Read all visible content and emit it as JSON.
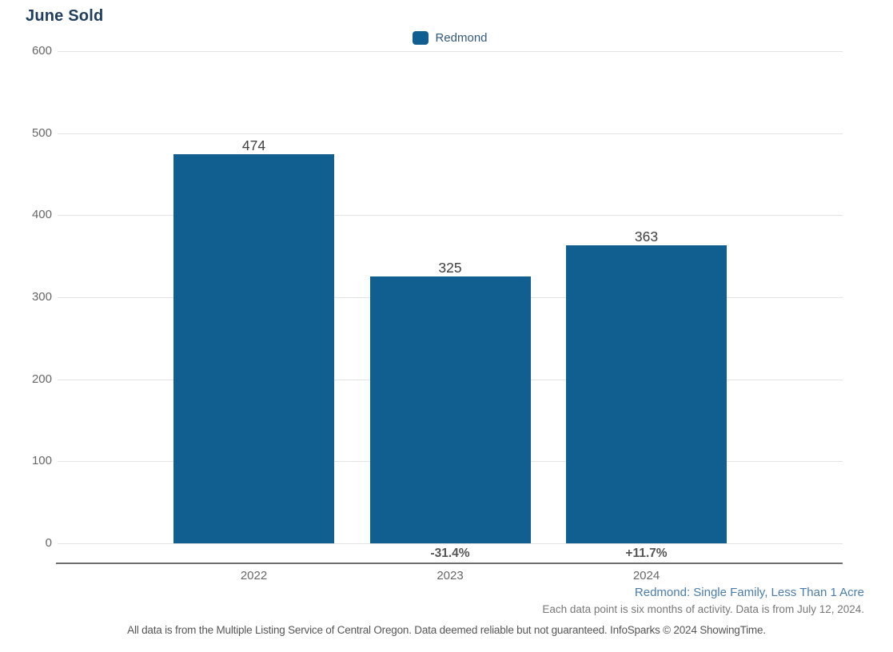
{
  "title": "June Sold",
  "legend": {
    "items": [
      {
        "label": "Redmond",
        "color": "#115e91"
      }
    ]
  },
  "chart_data": {
    "type": "bar",
    "title": "June Sold",
    "categories": [
      "2022",
      "2023",
      "2024"
    ],
    "series": [
      {
        "name": "Redmond",
        "color": "#115e91",
        "values": [
          474,
          325,
          363
        ]
      }
    ],
    "bar_value_labels": [
      "474",
      "325",
      "363"
    ],
    "percent_change_labels": [
      "",
      "-31.4%",
      "+11.7%"
    ],
    "xlabel": "",
    "ylabel": "",
    "ylim": [
      0,
      600
    ],
    "yticks": [
      0,
      100,
      200,
      300,
      400,
      500,
      600
    ],
    "grid": "horizontal",
    "legend_position": "top-center"
  },
  "footer": {
    "series_description": "Redmond: Single Family, Less Than 1 Acre",
    "activity_note": "Each data point is six months of activity. Data is from July 12, 2024.",
    "disclaimer": "All data is from the Multiple Listing Service of Central Oregon. Data deemed reliable but not guaranteed. InfoSparks © 2024 ShowingTime."
  },
  "colors": {
    "bar": "#115e91",
    "title_text": "#1f3d5c",
    "legend_text": "#33597a",
    "axis_text": "#666666",
    "value_label_text": "#404040",
    "percent_label_text": "#555555",
    "gridline": "#e3e3e3",
    "axis_line": "#6e6e6e",
    "series_description_text": "#4a7cab",
    "note_text": "#777777",
    "disclaimer_text": "#555555"
  }
}
